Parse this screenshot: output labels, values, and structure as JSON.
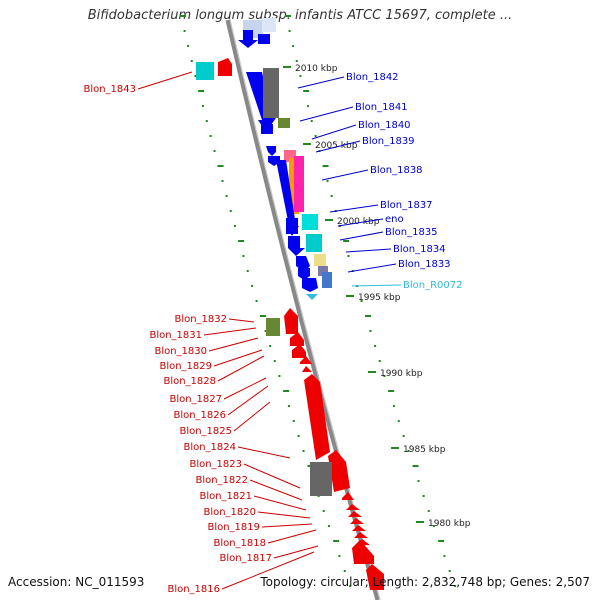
{
  "title": "Bifidobacterium longum subsp. infantis ATCC 15697, complete ...",
  "footer": {
    "accession": "Accession: NC_011593",
    "stats": "Topology: circular; Length: 2,832,748 bp; Genes: 2,507"
  },
  "colors": {
    "forward_label": "#0000cc",
    "reverse_label": "#cc0000",
    "rna_label": "#33bbdd",
    "backbone": "#888888",
    "ticks": "#228822"
  },
  "scale_ticks": [
    {
      "label": "2010 kbp"
    },
    {
      "label": "2005 kbp"
    },
    {
      "label": "2000 kbp"
    },
    {
      "label": "1995 kbp"
    },
    {
      "label": "1990 kbp"
    },
    {
      "label": "1985 kbp"
    },
    {
      "label": "1980 kbp"
    }
  ],
  "forward_genes": [
    {
      "label": "Blon_1842"
    },
    {
      "label": "Blon_1841"
    },
    {
      "label": "Blon_1840"
    },
    {
      "label": "Blon_1839"
    },
    {
      "label": "Blon_1838"
    },
    {
      "label": "Blon_1837"
    },
    {
      "label": "eno"
    },
    {
      "label": "Blon_1835"
    },
    {
      "label": "Blon_1834"
    },
    {
      "label": "Blon_1833"
    },
    {
      "label": "Blon_R0072"
    }
  ],
  "reverse_genes": [
    {
      "label": "Blon_1843"
    },
    {
      "label": "Blon_1832"
    },
    {
      "label": "Blon_1831"
    },
    {
      "label": "Blon_1830"
    },
    {
      "label": "Blon_1829"
    },
    {
      "label": "Blon_1828"
    },
    {
      "label": "Blon_1827"
    },
    {
      "label": "Blon_1826"
    },
    {
      "label": "Blon_1825"
    },
    {
      "label": "Blon_1824"
    },
    {
      "label": "Blon_1823"
    },
    {
      "label": "Blon_1822"
    },
    {
      "label": "Blon_1821"
    },
    {
      "label": "Blon_1820"
    },
    {
      "label": "Blon_1819"
    },
    {
      "label": "Blon_1818"
    },
    {
      "label": "Blon_1817"
    },
    {
      "label": "Blon_1816"
    }
  ]
}
